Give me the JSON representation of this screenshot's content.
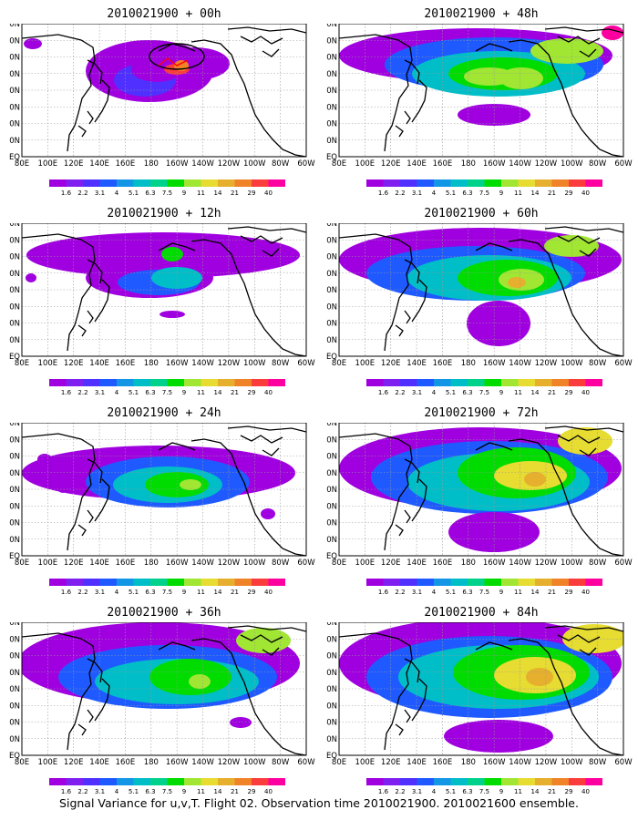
{
  "lat_labels": [
    "80N",
    "70N",
    "60N",
    "50N",
    "40N",
    "30N",
    "20N",
    "10N",
    "EQ"
  ],
  "lon_labels": [
    "80E",
    "100E",
    "120E",
    "140E",
    "160E",
    "180",
    "160W",
    "140W",
    "120W",
    "100W",
    "80W",
    "60W"
  ],
  "colorbar": {
    "levels": [
      "1.6",
      "2.2",
      "3.1",
      "4",
      "5.1",
      "6.3",
      "7.5",
      "9",
      "11",
      "14",
      "21",
      "29",
      "40"
    ],
    "colors": [
      "#a000e0",
      "#8020f0",
      "#5030ff",
      "#1e5aff",
      "#1496e6",
      "#00bec8",
      "#00d28c",
      "#00dc00",
      "#a0e632",
      "#e6dc32",
      "#e6af2d",
      "#f08228",
      "#fa3c3c",
      "#ff00a0"
    ]
  },
  "panels": [
    {
      "title": "2010021900 + 00h"
    },
    {
      "title": "2010021900 + 48h"
    },
    {
      "title": "2010021900 + 12h"
    },
    {
      "title": "2010021900 + 60h"
    },
    {
      "title": "2010021900 + 24h"
    },
    {
      "title": "2010021900 + 72h"
    },
    {
      "title": "2010021900 + 36h"
    },
    {
      "title": "2010021900 + 84h"
    }
  ],
  "caption": "Signal Variance for u,v,T. Flight 02. Observation time 2010021900. 2010021600 ensemble."
}
